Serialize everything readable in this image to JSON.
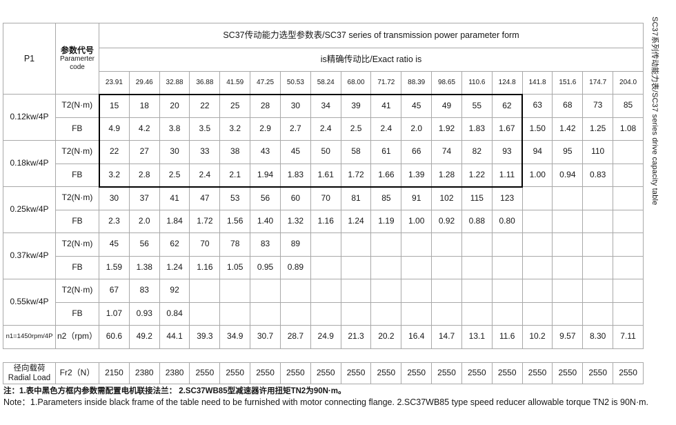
{
  "main_table": {
    "corner_label": "P1",
    "param_code": {
      "cn": "参数代号",
      "en_line1": "Paramerter",
      "en_line2": "code"
    },
    "title": "SC37传动能力选型参数表/SC37 series of transmission power parameter form",
    "ratio_header": "is精确传动比/Exact ratio is",
    "ratios": [
      "23.91",
      "29.46",
      "32.88",
      "36.88",
      "41.59",
      "47.25",
      "50.53",
      "58.24",
      "68.00",
      "71.72",
      "88.39",
      "98.65",
      "110.6",
      "124.8",
      "141.8",
      "151.6",
      "174.7",
      "204.0"
    ],
    "t2_label": "T2(N·m)",
    "fb_label": "FB",
    "power_rows": [
      {
        "label": "0.12kw/4P",
        "t2": [
          "15",
          "18",
          "20",
          "22",
          "25",
          "28",
          "30",
          "34",
          "39",
          "41",
          "45",
          "49",
          "55",
          "62",
          "63",
          "68",
          "73",
          "85"
        ],
        "fb": [
          "4.9",
          "4.2",
          "3.8",
          "3.5",
          "3.2",
          "2.9",
          "2.7",
          "2.4",
          "2.5",
          "2.4",
          "2.0",
          "1.92",
          "1.83",
          "1.67",
          "1.50",
          "1.42",
          "1.25",
          "1.08"
        ]
      },
      {
        "label": "0.18kw/4P",
        "t2": [
          "22",
          "27",
          "30",
          "33",
          "38",
          "43",
          "45",
          "50",
          "58",
          "61",
          "66",
          "74",
          "82",
          "93",
          "94",
          "95",
          "110",
          ""
        ],
        "fb": [
          "3.2",
          "2.8",
          "2.5",
          "2.4",
          "2.1",
          "1.94",
          "1.83",
          "1.61",
          "1.72",
          "1.66",
          "1.39",
          "1.28",
          "1.22",
          "1.11",
          "1.00",
          "0.94",
          "0.83",
          ""
        ]
      },
      {
        "label": "0.25kw/4P",
        "t2": [
          "30",
          "37",
          "41",
          "47",
          "53",
          "56",
          "60",
          "70",
          "81",
          "85",
          "91",
          "102",
          "115",
          "123",
          "",
          "",
          "",
          ""
        ],
        "fb": [
          "2.3",
          "2.0",
          "1.84",
          "1.72",
          "1.56",
          "1.40",
          "1.32",
          "1.16",
          "1.24",
          "1.19",
          "1.00",
          "0.92",
          "0.88",
          "0.80",
          "",
          "",
          "",
          ""
        ]
      },
      {
        "label": "0.37kw/4P",
        "t2": [
          "45",
          "56",
          "62",
          "70",
          "78",
          "83",
          "89",
          "",
          "",
          "",
          "",
          "",
          "",
          "",
          "",
          "",
          "",
          ""
        ],
        "fb": [
          "1.59",
          "1.38",
          "1.24",
          "1.16",
          "1.05",
          "0.95",
          "0.89",
          "",
          "",
          "",
          "",
          "",
          "",
          "",
          "",
          "",
          "",
          ""
        ]
      },
      {
        "label": "0.55kw/4P",
        "t2": [
          "67",
          "83",
          "92",
          "",
          "",
          "",
          "",
          "",
          "",
          "",
          "",
          "",
          "",
          "",
          "",
          "",
          "",
          ""
        ],
        "fb": [
          "1.07",
          "0.93",
          "0.84",
          "",
          "",
          "",
          "",
          "",
          "",
          "",
          "",
          "",
          "",
          "",
          "",
          "",
          "",
          ""
        ]
      }
    ],
    "speed_row": {
      "label": "n1=1450rpm/4P",
      "param": "n2（rpm）",
      "values": [
        "60.6",
        "49.2",
        "44.1",
        "39.3",
        "34.9",
        "30.7",
        "28.7",
        "24.9",
        "21.3",
        "20.2",
        "16.4",
        "14.7",
        "13.1",
        "11.6",
        "10.2",
        "9.57",
        "8.30",
        "7.11"
      ]
    }
  },
  "radial_table": {
    "label_cn": "径向载荷",
    "label_en": "Radial Load",
    "param": "Fr2（N）",
    "values": [
      "2150",
      "2380",
      "2380",
      "2550",
      "2550",
      "2550",
      "2550",
      "2550",
      "2550",
      "2550",
      "2550",
      "2550",
      "2550",
      "2550",
      "2550",
      "2550",
      "2550",
      "2550"
    ]
  },
  "notes": {
    "cn": "注：1.表中黑色方框内参数需配置电机联接法兰：  2.SC37WB85型减速器许用扭矩TN2为90N·m。",
    "en": "Note：1.Parameters inside black frame of the table need to be furnished with motor connecting flange.   2.SC37WB85 type speed reducer allowable torque TN2 is 90N·m."
  },
  "side_label": "SC37系列传动能力表/SC37 series drive capacity table"
}
